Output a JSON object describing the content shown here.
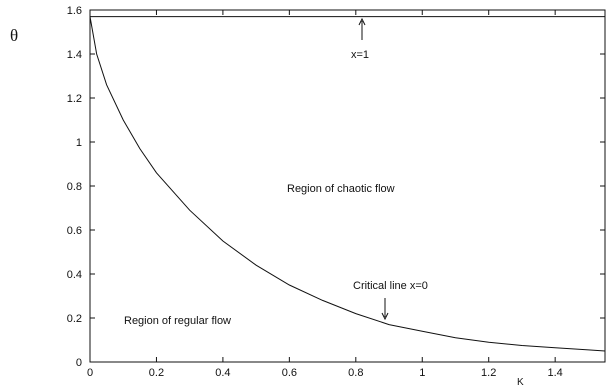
{
  "chart_data": {
    "type": "line",
    "title": "",
    "xlabel": "K",
    "ylabel": "θ",
    "xlim": [
      0,
      1.55
    ],
    "ylim": [
      0,
      1.6
    ],
    "xticks": [
      "0",
      "0.2",
      "0.4",
      "0.6",
      "0.8",
      "1",
      "1.2",
      "1.4"
    ],
    "yticks": [
      "0",
      "0.2",
      "0.4",
      "0.6",
      "0.8",
      "1",
      "1.2",
      "1.4",
      "1.6"
    ],
    "grid": false,
    "series": [
      {
        "x": [
          0,
          0.02,
          0.05,
          0.1,
          0.15,
          0.2,
          0.3,
          0.4,
          0.5,
          0.6,
          0.7,
          0.8,
          0.9,
          1.0,
          1.1,
          1.2,
          1.3,
          1.4,
          1.5,
          1.55
        ],
        "y": [
          1.57,
          1.4,
          1.26,
          1.1,
          0.97,
          0.86,
          0.69,
          0.55,
          0.44,
          0.35,
          0.28,
          0.22,
          0.17,
          0.14,
          0.11,
          0.09,
          0.075,
          0.065,
          0.055,
          0.05
        ]
      },
      {
        "x": [
          0,
          1.55
        ],
        "y": [
          1.57,
          1.57
        ]
      }
    ],
    "annotations": {
      "x1": "x=1",
      "critical": "Critical line x=0",
      "chaotic": "Region of chaotic flow",
      "regular": "Region of regular flow"
    }
  }
}
